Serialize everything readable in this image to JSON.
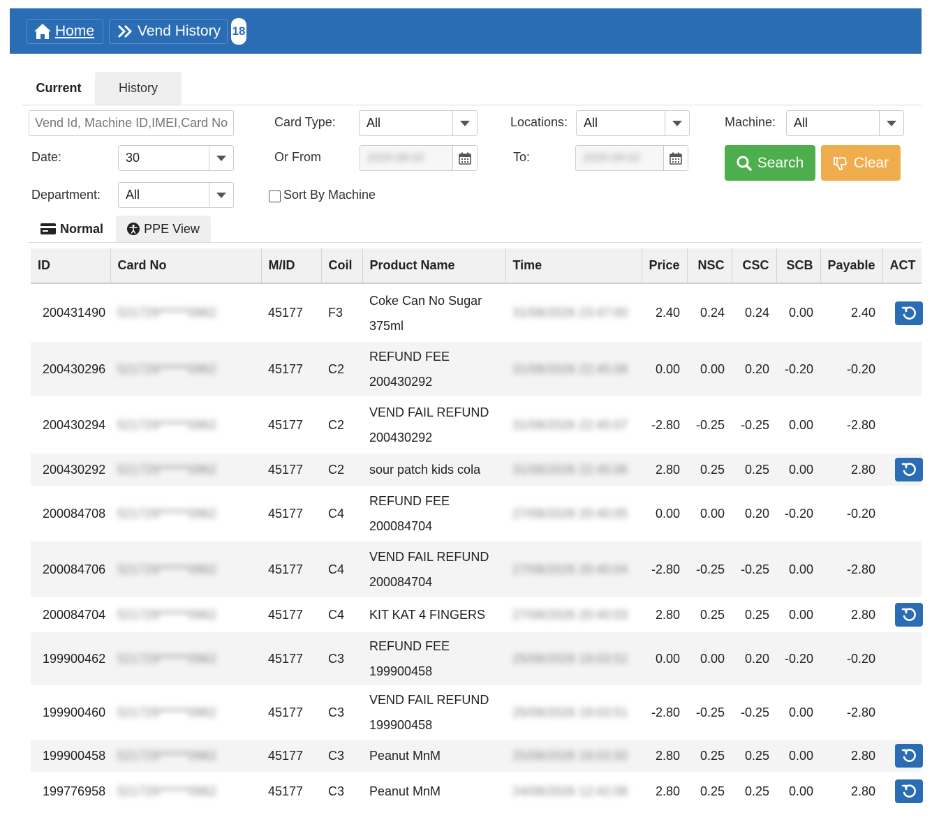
{
  "breadcrumb": {
    "home": "Home",
    "vend_history": "Vend History",
    "badge": "18"
  },
  "tabs": [
    {
      "label": "Current"
    },
    {
      "label": "History"
    }
  ],
  "filters": {
    "search_placeholder": "Vend Id, Machine ID,IMEI,Card No",
    "card_type_label": "Card Type:",
    "card_type_value": "All",
    "locations_label": "Locations:",
    "locations_value": "All",
    "machine_label": "Machine:",
    "machine_value": "All",
    "date_label": "Date:",
    "date_value": "30",
    "or_from_label": "Or From",
    "from_value": "2026-08-02",
    "to_label": "To:",
    "to_value": "2026-09-02",
    "department_label": "Department:",
    "department_value": "All",
    "sort_by_machine_label": "Sort By Machine"
  },
  "buttons": {
    "search": "Search",
    "clear": "Clear"
  },
  "view_tabs": {
    "normal": "Normal",
    "ppe": "PPE View"
  },
  "colors": {
    "header_blue": "#2a6db5",
    "search_green": "#4cae4c",
    "clear_orange": "#f0ad4e"
  },
  "table": {
    "headers": [
      "ID",
      "Card No",
      "M/ID",
      "Coil",
      "Product Name",
      "Time",
      "Price",
      "NSC",
      "CSC",
      "SCB",
      "Payable",
      "ACT"
    ],
    "rows": [
      {
        "id": "200431490",
        "card": "521729******0962",
        "mid": "45177",
        "coil": "F3",
        "product": "Coke Can No Sugar",
        "product2": "375ml",
        "time": "31/08/2026 23:47:00",
        "price": "2.40",
        "nsc": "0.24",
        "csc": "0.24",
        "scb": "0.00",
        "payable": "2.40",
        "act": true
      },
      {
        "id": "200430296",
        "card": "521729******0962",
        "mid": "45177",
        "coil": "C2",
        "product": "REFUND FEE",
        "product2": "200430292",
        "time": "31/08/2026 22:45:08",
        "price": "0.00",
        "nsc": "0.00",
        "csc": "0.20",
        "scb": "-0.20",
        "payable": "-0.20",
        "act": false
      },
      {
        "id": "200430294",
        "card": "521729******0962",
        "mid": "45177",
        "coil": "C2",
        "product": "VEND FAIL REFUND",
        "product2": "200430292",
        "time": "31/08/2026 22:45:07",
        "price": "-2.80",
        "nsc": "-0.25",
        "csc": "-0.25",
        "scb": "0.00",
        "payable": "-2.80",
        "act": false
      },
      {
        "id": "200430292",
        "card": "521729******0962",
        "mid": "45177",
        "coil": "C2",
        "product": "sour patch kids cola",
        "product2": "",
        "time": "31/08/2026 22:45:06",
        "price": "2.80",
        "nsc": "0.25",
        "csc": "0.25",
        "scb": "0.00",
        "payable": "2.80",
        "act": true
      },
      {
        "id": "200084708",
        "card": "521729******0962",
        "mid": "45177",
        "coil": "C4",
        "product": "REFUND FEE",
        "product2": "200084704",
        "time": "27/08/2026 20:40:05",
        "price": "0.00",
        "nsc": "0.00",
        "csc": "0.20",
        "scb": "-0.20",
        "payable": "-0.20",
        "act": false
      },
      {
        "id": "200084706",
        "card": "521729******0962",
        "mid": "45177",
        "coil": "C4",
        "product": "VEND FAIL REFUND",
        "product2": "200084704",
        "time": "27/08/2026 20:40:04",
        "price": "-2.80",
        "nsc": "-0.25",
        "csc": "-0.25",
        "scb": "0.00",
        "payable": "-2.80",
        "act": false
      },
      {
        "id": "200084704",
        "card": "521729******0962",
        "mid": "45177",
        "coil": "C4",
        "product": "KIT KAT 4 FINGERS",
        "product2": "",
        "time": "27/08/2026 20:40:03",
        "price": "2.80",
        "nsc": "0.25",
        "csc": "0.25",
        "scb": "0.00",
        "payable": "2.80",
        "act": true
      },
      {
        "id": "199900462",
        "card": "521729******0962",
        "mid": "45177",
        "coil": "C3",
        "product": "REFUND FEE",
        "product2": "199900458",
        "time": "25/08/2026 19:03:52",
        "price": "0.00",
        "nsc": "0.00",
        "csc": "0.20",
        "scb": "-0.20",
        "payable": "-0.20",
        "act": false
      },
      {
        "id": "199900460",
        "card": "521729******0962",
        "mid": "45177",
        "coil": "C3",
        "product": "VEND FAIL REFUND",
        "product2": "199900458",
        "time": "25/08/2026 19:03:51",
        "price": "-2.80",
        "nsc": "-0.25",
        "csc": "-0.25",
        "scb": "0.00",
        "payable": "-2.80",
        "act": false
      },
      {
        "id": "199900458",
        "card": "521729******0962",
        "mid": "45177",
        "coil": "C3",
        "product": "Peanut MnM",
        "product2": "",
        "time": "25/08/2026 19:03:50",
        "price": "2.80",
        "nsc": "0.25",
        "csc": "0.25",
        "scb": "0.00",
        "payable": "2.80",
        "act": true
      },
      {
        "id": "199776958",
        "card": "521729******0962",
        "mid": "45177",
        "coil": "C3",
        "product": "Peanut MnM",
        "product2": "",
        "time": "24/08/2026 12:42:08",
        "price": "2.80",
        "nsc": "0.25",
        "csc": "0.25",
        "scb": "0.00",
        "payable": "2.80",
        "act": true
      }
    ]
  }
}
